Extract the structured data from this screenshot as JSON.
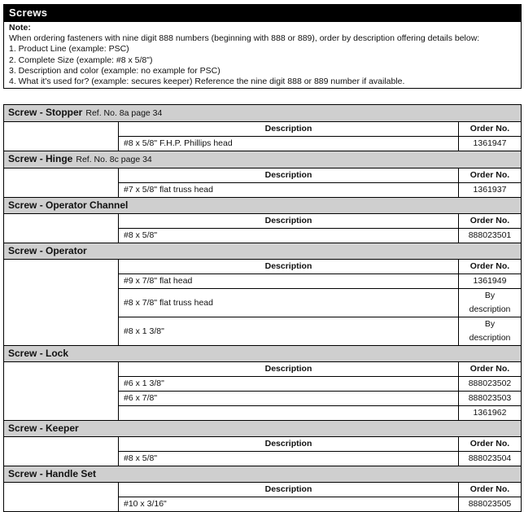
{
  "title": "Screws",
  "note": {
    "label": "Note:",
    "lines": [
      "When ordering fasteners with nine digit 888 numbers (beginning with 888 or 889), order by description offering details below:",
      "1. Product Line (example: PSC)",
      "2. Complete Size (example: #8 x 5/8\")",
      "3. Description and color (example: no example for PSC)",
      "4. What it's used for? (example: secures keeper) Reference the nine digit 888 or 889 number if available."
    ]
  },
  "columns": {
    "description": "Description",
    "order_no": "Order No."
  },
  "sections": [
    {
      "name": "Screw - Stopper",
      "ref": "Ref. No. 8a page 34",
      "rows": [
        {
          "description": "#8 x 5/8\" F.H.P. Phillips head",
          "order_no": "1361947"
        }
      ]
    },
    {
      "name": "Screw - Hinge",
      "ref": "Ref. No. 8c page 34",
      "rows": [
        {
          "description": "#7 x 5/8\" flat truss head",
          "order_no": "1361937"
        }
      ]
    },
    {
      "name": "Screw - Operator Channel",
      "ref": "",
      "rows": [
        {
          "description": "#8 x 5/8\"",
          "order_no": "888023501"
        }
      ]
    },
    {
      "name": "Screw - Operator",
      "ref": "",
      "rows": [
        {
          "description": "#9 x 7/8\" flat head",
          "order_no": "1361949"
        },
        {
          "description": "#8 x 7/8\" flat truss head",
          "order_no": "By description"
        },
        {
          "description": "#8 x 1 3/8\"",
          "order_no": "By description"
        }
      ]
    },
    {
      "name": "Screw - Lock",
      "ref": "",
      "rows": [
        {
          "description": "#6 x 1 3/8\"",
          "order_no": "888023502"
        },
        {
          "description": "#6 x 7/8\"",
          "order_no": "888023503"
        },
        {
          "description": "",
          "order_no": "1361962"
        }
      ]
    },
    {
      "name": "Screw - Keeper",
      "ref": "",
      "rows": [
        {
          "description": "#8 x 5/8\"",
          "order_no": "888023504"
        }
      ]
    },
    {
      "name": "Screw - Handle Set",
      "ref": "",
      "rows": [
        {
          "description": "#10 x 3/16\"",
          "order_no": "888023505"
        }
      ]
    }
  ]
}
